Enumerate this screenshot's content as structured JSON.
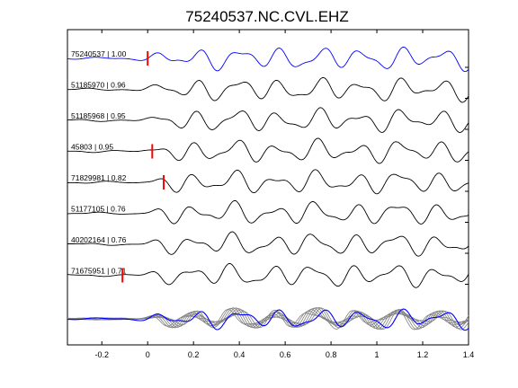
{
  "chart_data": {
    "type": "line",
    "title": "75240537.NC.CVL.EHZ",
    "xlabel": "",
    "ylabel": "",
    "xlim": [
      -0.35,
      1.4
    ],
    "xticks": [
      -0.2,
      0,
      0.2,
      0.4,
      0.6,
      0.8,
      1,
      1.2,
      1.4
    ],
    "xtick_labels": [
      "-0.2",
      "0",
      "0.2",
      "0.4",
      "0.6",
      "0.8",
      "1",
      "1.2",
      "1.4"
    ],
    "grid": false,
    "colors": {
      "reference": "#0000ff",
      "trace": "#000000",
      "pick": "#ff0000",
      "overlay": "#808080"
    },
    "traces": [
      {
        "label": "75240537 | 1.00",
        "pick": 0.0,
        "color": "#0000ff"
      },
      {
        "label": "51185970 | 0.96",
        "pick": null,
        "color": "#000000"
      },
      {
        "label": "51185968 | 0.95",
        "pick": null,
        "color": "#000000"
      },
      {
        "label": "45803 | 0.95",
        "pick": 0.02,
        "color": "#000000"
      },
      {
        "label": "71829981 | 0.82",
        "pick": 0.07,
        "color": "#000000"
      },
      {
        "label": "51177105 | 0.76",
        "pick": null,
        "color": "#000000"
      },
      {
        "label": "40202164 | 0.76",
        "pick": null,
        "color": "#000000"
      },
      {
        "label": "71675951 | 0.71",
        "pick": -0.11,
        "color": "#000000"
      }
    ]
  }
}
